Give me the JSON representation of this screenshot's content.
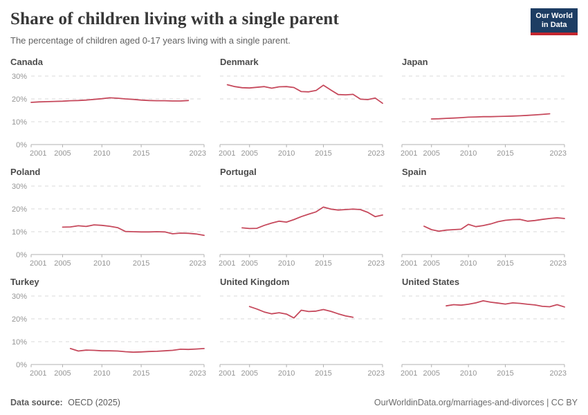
{
  "header": {
    "title": "Share of children living with a single parent",
    "subtitle": "The percentage of children aged 0-17 years living with a single parent.",
    "logo": {
      "line1": "Our World",
      "line2": "in Data"
    }
  },
  "footer": {
    "source_label": "Data source:",
    "source_value": "OECD (2025)",
    "url": "OurWorldinData.org/marriages-and-divorces",
    "divider": " | ",
    "license": "CC BY"
  },
  "colors": {
    "line": "#c6495c",
    "grid": "#dadada",
    "axis": "#b0b0b0",
    "tick_text": "#959595",
    "logo_navy": "#1d3d63",
    "logo_red": "#c4262e"
  },
  "chart_data": {
    "type": "line",
    "xlim": [
      2001,
      2023
    ],
    "ylim": [
      0,
      33
    ],
    "x_ticks": [
      2001,
      2005,
      2010,
      2015,
      2023
    ],
    "y_ticks": [
      {
        "value": 0,
        "label": "0%"
      },
      {
        "value": 10,
        "label": "10%"
      },
      {
        "value": 20,
        "label": "20%"
      },
      {
        "value": 30,
        "label": "30%"
      }
    ],
    "grid": "dashed-horizontal",
    "legend": "none",
    "charts": [
      {
        "title": "Canada",
        "y_axis_labels": true,
        "x": [
          2001,
          2002,
          2003,
          2004,
          2005,
          2006,
          2007,
          2008,
          2009,
          2010,
          2011,
          2012,
          2013,
          2014,
          2015,
          2016,
          2017,
          2018,
          2019,
          2020,
          2021
        ],
        "values": [
          18.5,
          18.7,
          18.8,
          18.9,
          19.0,
          19.2,
          19.3,
          19.5,
          19.8,
          20.1,
          20.5,
          20.3,
          20.0,
          19.8,
          19.5,
          19.3,
          19.2,
          19.2,
          19.1,
          19.1,
          19.3
        ]
      },
      {
        "title": "Denmark",
        "y_axis_labels": false,
        "x": [
          2002,
          2003,
          2004,
          2005,
          2006,
          2007,
          2008,
          2009,
          2010,
          2011,
          2012,
          2013,
          2014,
          2015,
          2016,
          2017,
          2018,
          2019,
          2020,
          2021,
          2022,
          2023
        ],
        "values": [
          26.2,
          25.4,
          24.9,
          24.8,
          25.1,
          25.4,
          24.7,
          25.3,
          25.4,
          25.0,
          23.2,
          23.1,
          23.7,
          26.0,
          23.9,
          21.9,
          21.8,
          22.0,
          19.9,
          19.7,
          20.4,
          18.1
        ]
      },
      {
        "title": "Japan",
        "y_axis_labels": false,
        "x": [
          2005,
          2006,
          2007,
          2008,
          2009,
          2010,
          2011,
          2012,
          2013,
          2014,
          2015,
          2016,
          2017,
          2018,
          2019,
          2020,
          2021
        ],
        "values": [
          11.2,
          11.3,
          11.5,
          11.6,
          11.8,
          12.0,
          12.1,
          12.2,
          12.2,
          12.3,
          12.4,
          12.5,
          12.6,
          12.8,
          13.0,
          13.2,
          13.5
        ]
      },
      {
        "title": "Poland",
        "y_axis_labels": true,
        "x": [
          2005,
          2006,
          2007,
          2008,
          2009,
          2010,
          2011,
          2012,
          2013,
          2014,
          2015,
          2016,
          2017,
          2018,
          2019,
          2020,
          2021,
          2022,
          2023
        ],
        "values": [
          12.0,
          12.1,
          12.6,
          12.3,
          13.0,
          12.8,
          12.4,
          11.8,
          10.1,
          10.0,
          9.9,
          9.9,
          10.0,
          9.9,
          9.1,
          9.4,
          9.3,
          9.0,
          8.4
        ]
      },
      {
        "title": "Portugal",
        "y_axis_labels": false,
        "x": [
          2004,
          2005,
          2006,
          2007,
          2008,
          2009,
          2010,
          2011,
          2012,
          2013,
          2014,
          2015,
          2016,
          2017,
          2018,
          2019,
          2020,
          2021,
          2022,
          2023
        ],
        "values": [
          11.7,
          11.4,
          11.5,
          12.8,
          13.8,
          14.6,
          14.2,
          15.3,
          16.6,
          17.7,
          18.7,
          20.8,
          19.9,
          19.5,
          19.7,
          19.9,
          19.7,
          18.5,
          16.6,
          17.3
        ]
      },
      {
        "title": "Spain",
        "y_axis_labels": false,
        "x": [
          2004,
          2005,
          2006,
          2007,
          2008,
          2009,
          2010,
          2011,
          2012,
          2013,
          2014,
          2015,
          2016,
          2017,
          2018,
          2019,
          2020,
          2021,
          2022,
          2023
        ],
        "values": [
          12.4,
          10.9,
          10.2,
          10.7,
          10.9,
          11.1,
          13.2,
          12.2,
          12.7,
          13.4,
          14.4,
          15.0,
          15.3,
          15.4,
          14.6,
          14.9,
          15.4,
          15.8,
          16.1,
          15.8
        ]
      },
      {
        "title": "Turkey",
        "y_axis_labels": true,
        "x": [
          2006,
          2007,
          2008,
          2009,
          2010,
          2011,
          2012,
          2013,
          2014,
          2015,
          2016,
          2017,
          2018,
          2019,
          2020,
          2021,
          2022,
          2023
        ],
        "values": [
          7.0,
          5.9,
          6.3,
          6.2,
          6.0,
          6.0,
          5.9,
          5.6,
          5.4,
          5.5,
          5.7,
          5.8,
          6.0,
          6.2,
          6.7,
          6.6,
          6.8,
          7.0
        ]
      },
      {
        "title": "United Kingdom",
        "y_axis_labels": false,
        "x": [
          2005,
          2006,
          2007,
          2008,
          2009,
          2010,
          2011,
          2012,
          2013,
          2014,
          2015,
          2016,
          2017,
          2018,
          2019
        ],
        "values": [
          25.4,
          24.3,
          23.0,
          22.2,
          22.7,
          22.1,
          20.4,
          23.8,
          23.2,
          23.4,
          24.1,
          23.3,
          22.2,
          21.3,
          20.7
        ]
      },
      {
        "title": "United States",
        "y_axis_labels": false,
        "x": [
          2007,
          2008,
          2009,
          2010,
          2011,
          2012,
          2013,
          2014,
          2015,
          2016,
          2017,
          2018,
          2019,
          2020,
          2021,
          2022,
          2023
        ],
        "values": [
          25.7,
          26.2,
          26.0,
          26.4,
          27.0,
          27.9,
          27.3,
          26.9,
          26.5,
          27.0,
          26.8,
          26.4,
          26.1,
          25.5,
          25.3,
          26.2,
          25.2
        ]
      }
    ]
  }
}
